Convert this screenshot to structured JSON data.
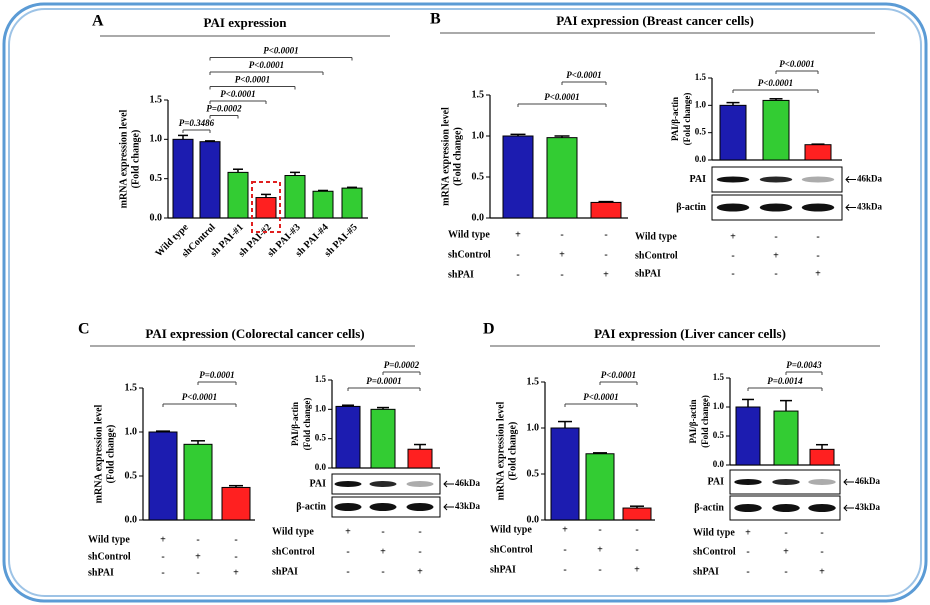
{
  "panels": [
    {
      "letter": "A",
      "title": "PAI expression"
    },
    {
      "letter": "B",
      "title": "PAI expression (Breast cancer cells)"
    },
    {
      "letter": "C",
      "title": "PAI expression (Colorectal cancer cells)"
    },
    {
      "letter": "D",
      "title": "PAI expression (Liver cancer cells)"
    }
  ],
  "chart_data": [
    {
      "type": "bar",
      "y_label": [
        "mRNA expression level",
        "(Fold change)"
      ],
      "categories": [
        "Wild type",
        "shControl",
        "sh PAI-#1",
        "sh PAI-#2",
        "sh PAI-#3",
        "sh PAI-#4",
        "sh PAI-#5"
      ],
      "values": [
        1.0,
        0.97,
        0.58,
        0.26,
        0.54,
        0.34,
        0.38
      ],
      "errors": [
        0.05,
        0.01,
        0.04,
        0.04,
        0.04,
        0.01,
        0.01
      ],
      "colors": [
        "#1c1cb0",
        "#1c1cb0",
        "#33cc33",
        "#ff2020",
        "#33cc33",
        "#33cc33",
        "#33cc33"
      ],
      "ylim": [
        0,
        1.5
      ],
      "yticks": [
        {
          "value": 0,
          "label": "0.0"
        },
        0.5,
        {
          "value": 1,
          "label": "1.0"
        },
        1.5
      ],
      "annotations": [
        "P<0.0001",
        "P<0.0001",
        "P<0.0001",
        "P<0.0001",
        "P=0.0002",
        "P=0.3486"
      ]
    },
    {
      "type": "bar",
      "y_label": [
        "mRNA expression level",
        "(Fold change)"
      ],
      "values": [
        1.0,
        0.98,
        0.19
      ],
      "errors": [
        0.02,
        0.02,
        0.01
      ],
      "colors": [
        "#1c1cb0",
        "#33cc33",
        "#ff2020"
      ],
      "ylim": [
        0,
        1.5
      ],
      "yticks": [
        {
          "value": 0,
          "label": "0.0"
        },
        0.5,
        {
          "value": 1,
          "label": "1.0"
        },
        1.5
      ],
      "annotations": [
        "P<0.0001",
        "P<0.0001"
      ],
      "conditions": [
        {
          "label": "Wild type",
          "marks": [
            "+",
            "-",
            "-"
          ]
        },
        {
          "label": "shControl",
          "marks": [
            "-",
            "+",
            "-"
          ]
        },
        {
          "label": "shPAI",
          "marks": [
            "-",
            "-",
            "+"
          ]
        }
      ]
    },
    {
      "type": "bar",
      "y_label": [
        "PAI/β-actin",
        "(Fold change)"
      ],
      "values": [
        1.0,
        1.09,
        0.28
      ],
      "errors": [
        0.05,
        0.03,
        0.01
      ],
      "colors": [
        "#1c1cb0",
        "#33cc33",
        "#ff2020"
      ],
      "ylim": [
        0,
        1.5
      ],
      "yticks": [
        {
          "value": 0,
          "label": "0.0"
        },
        0.5,
        {
          "value": 1,
          "label": "1.0"
        },
        1.5
      ],
      "annotations": [
        "P<0.0001",
        "P<0.0001"
      ],
      "blot": [
        {
          "label": "PAI",
          "size": "46kDa"
        },
        {
          "label": "β-actin",
          "size": "43kDa"
        }
      ],
      "conditions": [
        {
          "label": "Wild type",
          "marks": [
            "+",
            "-",
            "-"
          ]
        },
        {
          "label": "shControl",
          "marks": [
            "-",
            "+",
            "-"
          ]
        },
        {
          "label": "shPAI",
          "marks": [
            "-",
            "-",
            "+"
          ]
        }
      ]
    },
    {
      "type": "bar",
      "y_label": [
        "mRNA expression level",
        "(Fold change)"
      ],
      "values": [
        1.0,
        0.86,
        0.37
      ],
      "errors": [
        0.01,
        0.04,
        0.02
      ],
      "colors": [
        "#1c1cb0",
        "#33cc33",
        "#ff2020"
      ],
      "ylim": [
        0,
        1.5
      ],
      "yticks": [
        {
          "value": 0,
          "label": "0.0"
        },
        0.5,
        {
          "value": 1,
          "label": "1.0"
        },
        1.5
      ],
      "annotations": [
        "P=0.0001",
        "P<0.0001"
      ],
      "conditions": [
        {
          "label": "Wild type",
          "marks": [
            "+",
            "-",
            "-"
          ]
        },
        {
          "label": "shControl",
          "marks": [
            "-",
            "+",
            "-"
          ]
        },
        {
          "label": "shPAI",
          "marks": [
            "-",
            "-",
            "+"
          ]
        }
      ]
    },
    {
      "type": "bar",
      "y_label": [
        "PAI/β-actin",
        "(Fold change)"
      ],
      "values": [
        1.05,
        1.0,
        0.32
      ],
      "errors": [
        0.02,
        0.03,
        0.08
      ],
      "colors": [
        "#1c1cb0",
        "#33cc33",
        "#ff2020"
      ],
      "ylim": [
        0,
        1.5
      ],
      "yticks": [
        {
          "value": 0,
          "label": "0.0"
        },
        0.5,
        {
          "value": 1,
          "label": "1.0"
        },
        1.5
      ],
      "annotations": [
        "P=0.0002",
        "P=0.0001"
      ],
      "blot": [
        {
          "label": "PAI",
          "size": "46kDa"
        },
        {
          "label": "β-actin",
          "size": "43kDa"
        }
      ],
      "conditions": [
        {
          "label": "Wild type",
          "marks": [
            "+",
            "-",
            "-"
          ]
        },
        {
          "label": "shControl",
          "marks": [
            "-",
            "+",
            "-"
          ]
        },
        {
          "label": "shPAI",
          "marks": [
            "-",
            "-",
            "+"
          ]
        }
      ]
    },
    {
      "type": "bar",
      "y_label": [
        "mRNA expression level",
        "(Fold change)"
      ],
      "values": [
        1.0,
        0.72,
        0.13
      ],
      "errors": [
        0.07,
        0.01,
        0.02
      ],
      "colors": [
        "#1c1cb0",
        "#33cc33",
        "#ff2020"
      ],
      "ylim": [
        0,
        1.5
      ],
      "yticks": [
        {
          "value": 0,
          "label": "0.0"
        },
        0.5,
        {
          "value": 1,
          "label": "1.0"
        },
        1.5
      ],
      "annotations": [
        "P<0.0001",
        "P<0.0001"
      ],
      "conditions": [
        {
          "label": "Wild type",
          "marks": [
            "+",
            "-",
            "-"
          ]
        },
        {
          "label": "shControl",
          "marks": [
            "-",
            "+",
            "-"
          ]
        },
        {
          "label": "shPAI",
          "marks": [
            "-",
            "-",
            "+"
          ]
        }
      ]
    },
    {
      "type": "bar",
      "y_label": [
        "PAI/β-actin",
        "(Fold change)"
      ],
      "values": [
        1.0,
        0.93,
        0.27
      ],
      "errors": [
        0.13,
        0.18,
        0.08
      ],
      "colors": [
        "#1c1cb0",
        "#33cc33",
        "#ff2020"
      ],
      "ylim": [
        0,
        1.5
      ],
      "yticks": [
        {
          "value": 0,
          "label": "0.0"
        },
        0.5,
        {
          "value": 1,
          "label": "1.0"
        },
        1.5
      ],
      "annotations": [
        "P=0.0043",
        "P=0.0014"
      ],
      "blot": [
        {
          "label": "PAI",
          "size": "46kDa"
        },
        {
          "label": "β-actin",
          "size": "43kDa"
        }
      ],
      "conditions": [
        {
          "label": "Wild type",
          "marks": [
            "+",
            "-",
            "-"
          ]
        },
        {
          "label": "shControl",
          "marks": [
            "-",
            "+",
            "-"
          ]
        },
        {
          "label": "shPAI",
          "marks": [
            "-",
            "-",
            "+"
          ]
        }
      ]
    }
  ]
}
